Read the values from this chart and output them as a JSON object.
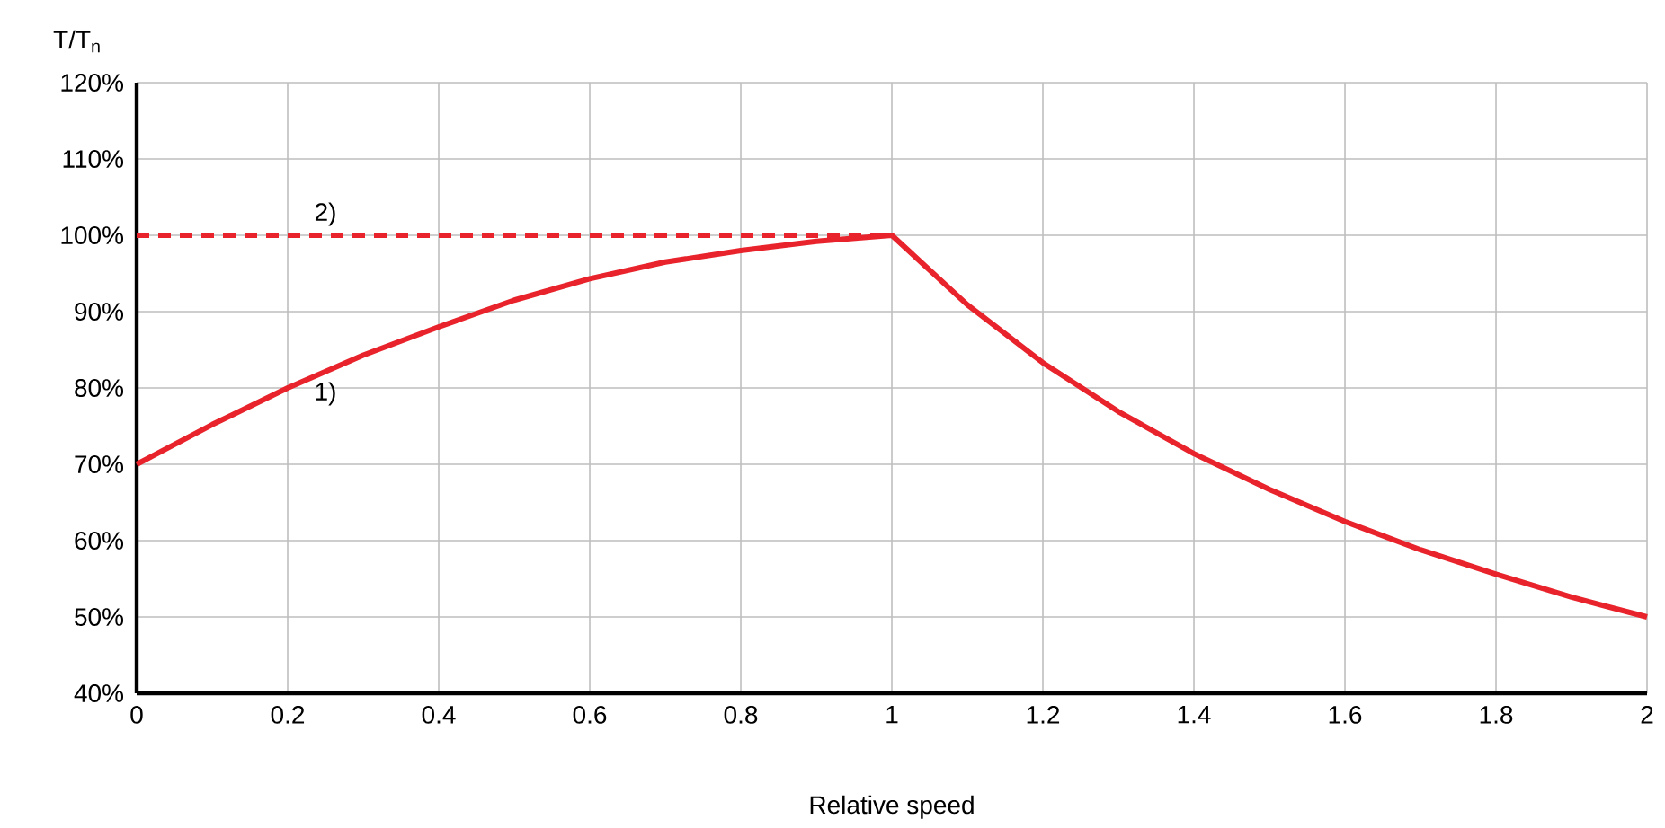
{
  "chart_data": {
    "type": "line",
    "xlabel": "Relative speed",
    "ylabel": "T/T$_{n}$",
    "xlim": [
      0,
      2
    ],
    "ylim": [
      40,
      120
    ],
    "xticks": [
      0,
      0.2,
      0.4,
      0.6,
      0.8,
      1,
      1.2,
      1.4,
      1.6,
      1.8,
      2
    ],
    "yticks": [
      {
        "value": 40,
        "label": "40%"
      },
      {
        "value": 50,
        "label": "50%"
      },
      {
        "value": 60,
        "label": "60%"
      },
      {
        "value": 70,
        "label": "70%"
      },
      {
        "value": 80,
        "label": "80%"
      },
      {
        "value": 90,
        "label": "90%"
      },
      {
        "value": 100,
        "label": "100%"
      },
      {
        "value": 110,
        "label": "110%"
      },
      {
        "value": 120,
        "label": "120%"
      }
    ],
    "grid": true,
    "marker": "none",
    "series": [
      {
        "color": "#e8232b",
        "line_style": "solid",
        "x": [
          0,
          0.1,
          0.2,
          0.3,
          0.4,
          0.5,
          0.6,
          0.7,
          0.8,
          0.9,
          1,
          1.1,
          1.2,
          1.3,
          1.4,
          1.5,
          1.6,
          1.7,
          1.8,
          1.9,
          2
        ],
        "values": [
          70,
          75.2,
          80,
          84.3,
          88,
          91.5,
          94.3,
          96.5,
          98,
          99.2,
          100,
          90.9,
          83.3,
          76.9,
          71.4,
          66.7,
          62.5,
          58.8,
          55.6,
          52.6,
          50
        ]
      },
      {
        "color": "#e8232b",
        "line_style": "dashed",
        "x": [
          0,
          1
        ],
        "values": [
          100,
          100
        ]
      }
    ],
    "annotations": [
      {
        "text": "1)",
        "x": 0.25,
        "y": 82
      },
      {
        "text": "2)",
        "x": 0.25,
        "y": 100
      }
    ]
  }
}
